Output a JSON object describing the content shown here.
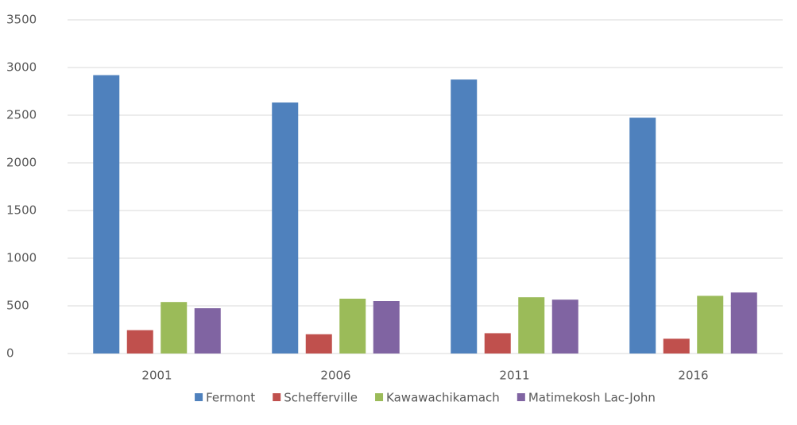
{
  "chart_data": {
    "type": "bar",
    "categories": [
      "2001",
      "2006",
      "2011",
      "2016"
    ],
    "series": [
      {
        "name": "Fermont",
        "color": "#4f81bd",
        "values": [
          2920,
          2633,
          2874,
          2474
        ]
      },
      {
        "name": "Schefferville",
        "color": "#c0504d",
        "values": [
          245,
          202,
          213,
          155
        ]
      },
      {
        "name": "Kawawachikamach",
        "color": "#9bbb59",
        "values": [
          540,
          575,
          590,
          605
        ]
      },
      {
        "name": "Matimekosh Lac-John",
        "color": "#8064a2",
        "values": [
          475,
          550,
          565,
          640
        ]
      }
    ],
    "ylim": [
      0,
      3500
    ],
    "yticks": [
      0,
      500,
      1000,
      1500,
      2000,
      2500,
      3000,
      3500
    ],
    "grid": true,
    "legend": "bottom"
  }
}
